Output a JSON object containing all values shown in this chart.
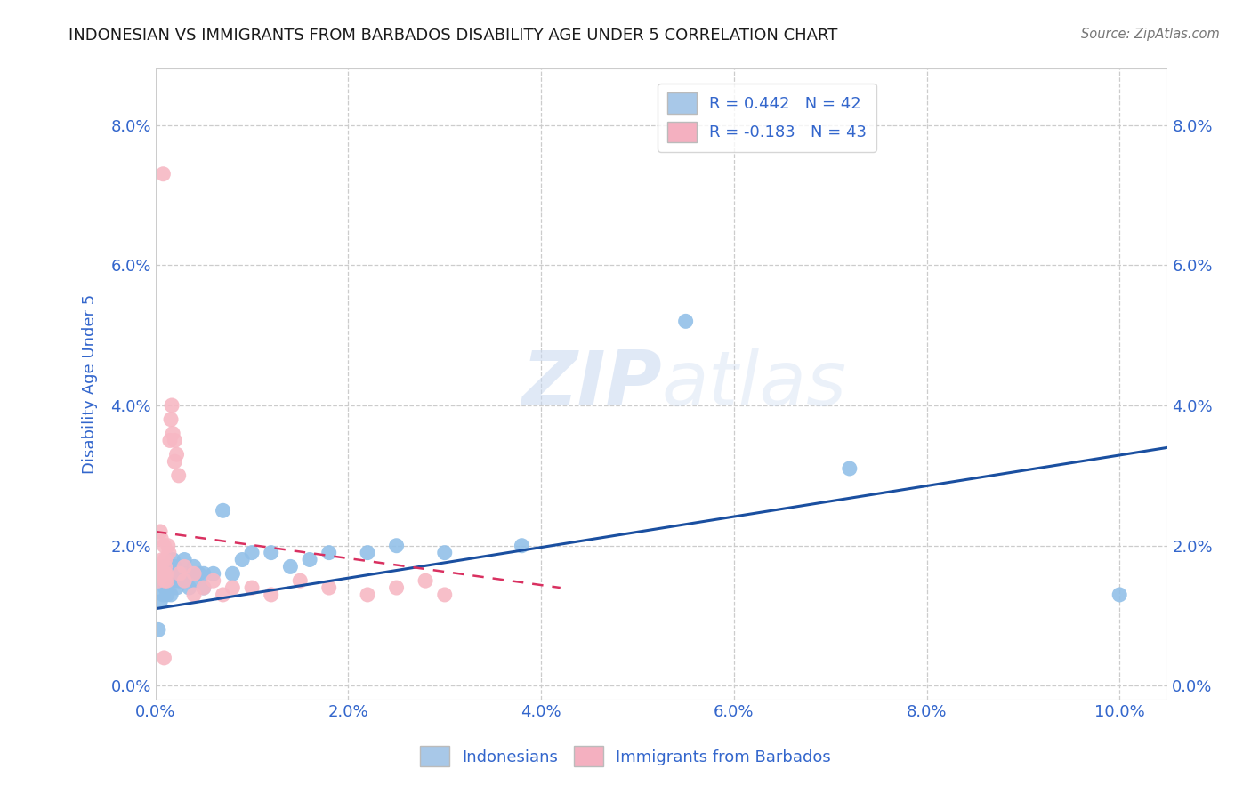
{
  "title": "INDONESIAN VS IMMIGRANTS FROM BARBADOS DISABILITY AGE UNDER 5 CORRELATION CHART",
  "source": "Source: ZipAtlas.com",
  "ylabel": "Disability Age Under 5",
  "watermark_zip": "ZIP",
  "watermark_atlas": "atlas",
  "xlim": [
    0.0,
    0.105
  ],
  "ylim": [
    -0.002,
    0.088
  ],
  "xticks": [
    0.0,
    0.02,
    0.04,
    0.06,
    0.08,
    0.1
  ],
  "yticks": [
    0.0,
    0.02,
    0.04,
    0.06,
    0.08
  ],
  "xtick_labels": [
    "0.0%",
    "2.0%",
    "4.0%",
    "6.0%",
    "8.0%",
    "10.0%"
  ],
  "ytick_labels": [
    "0.0%",
    "2.0%",
    "4.0%",
    "6.0%",
    "8.0%"
  ],
  "right_ytick_labels": [
    "0.0%",
    "2.0%",
    "4.0%",
    "6.0%",
    "8.0%"
  ],
  "indonesian_x": [
    0.0003,
    0.0005,
    0.0007,
    0.0008,
    0.001,
    0.001,
    0.001,
    0.0012,
    0.0013,
    0.0015,
    0.0016,
    0.0018,
    0.002,
    0.002,
    0.0022,
    0.0023,
    0.0025,
    0.003,
    0.003,
    0.0032,
    0.0035,
    0.004,
    0.004,
    0.0045,
    0.005,
    0.005,
    0.006,
    0.007,
    0.008,
    0.009,
    0.01,
    0.012,
    0.014,
    0.016,
    0.018,
    0.022,
    0.025,
    0.03,
    0.038,
    0.055,
    0.072,
    0.1
  ],
  "indonesian_y": [
    0.008,
    0.012,
    0.015,
    0.013,
    0.014,
    0.016,
    0.017,
    0.013,
    0.016,
    0.015,
    0.013,
    0.018,
    0.015,
    0.017,
    0.014,
    0.016,
    0.015,
    0.015,
    0.018,
    0.016,
    0.014,
    0.015,
    0.017,
    0.016,
    0.014,
    0.016,
    0.016,
    0.025,
    0.016,
    0.018,
    0.019,
    0.019,
    0.017,
    0.018,
    0.019,
    0.019,
    0.02,
    0.019,
    0.02,
    0.052,
    0.031,
    0.013
  ],
  "barbados_x": [
    0.0002,
    0.0003,
    0.0004,
    0.0005,
    0.0006,
    0.0007,
    0.0008,
    0.0009,
    0.001,
    0.001,
    0.001,
    0.001,
    0.0011,
    0.0012,
    0.0013,
    0.0014,
    0.0015,
    0.0016,
    0.0017,
    0.0018,
    0.002,
    0.002,
    0.0022,
    0.0024,
    0.0025,
    0.003,
    0.003,
    0.004,
    0.004,
    0.005,
    0.006,
    0.007,
    0.008,
    0.01,
    0.012,
    0.015,
    0.018,
    0.022,
    0.025,
    0.028,
    0.03,
    0.0008,
    0.0009
  ],
  "barbados_y": [
    0.016,
    0.015,
    0.017,
    0.022,
    0.021,
    0.018,
    0.016,
    0.02,
    0.015,
    0.016,
    0.017,
    0.018,
    0.016,
    0.015,
    0.02,
    0.019,
    0.035,
    0.038,
    0.04,
    0.036,
    0.032,
    0.035,
    0.033,
    0.03,
    0.016,
    0.015,
    0.017,
    0.016,
    0.013,
    0.014,
    0.015,
    0.013,
    0.014,
    0.014,
    0.013,
    0.015,
    0.014,
    0.013,
    0.014,
    0.015,
    0.013,
    0.073,
    0.004
  ],
  "blue_line_x": [
    0.0,
    0.105
  ],
  "blue_line_y": [
    0.011,
    0.034
  ],
  "pink_line_x": [
    0.0,
    0.042
  ],
  "pink_line_y": [
    0.022,
    0.014
  ],
  "dot_color_blue": "#92c0e8",
  "dot_color_pink": "#f7b8c4",
  "line_color_blue": "#1a4fa0",
  "line_color_pink": "#d93060",
  "grid_color": "#cccccc",
  "title_color": "#1a1a1a",
  "axis_color": "#3366cc",
  "tick_color": "#3366cc",
  "background_color": "#ffffff",
  "legend_r1": "R = 0.442   N = 42",
  "legend_r2": "R = -0.183   N = 43",
  "legend_blue_color": "#a8c8e8",
  "legend_pink_color": "#f4b0c0",
  "bottom_label1": "Indonesians",
  "bottom_label2": "Immigrants from Barbados"
}
